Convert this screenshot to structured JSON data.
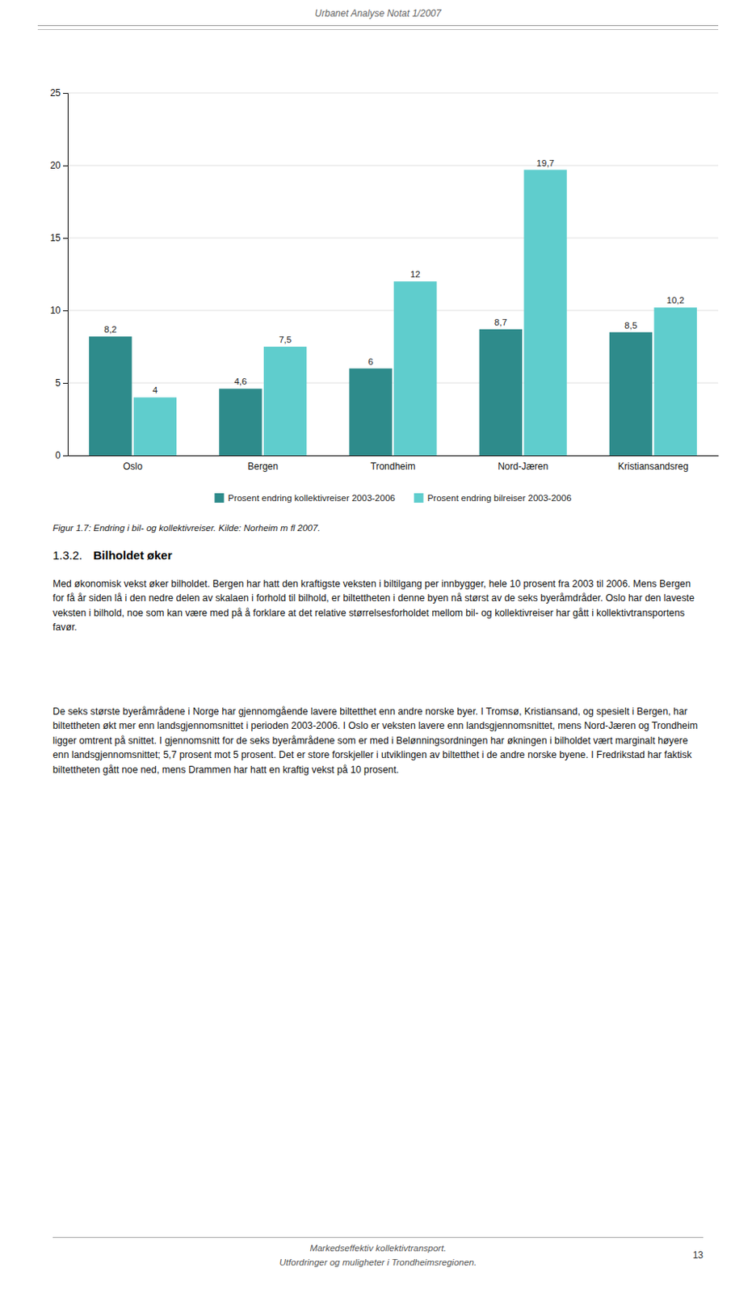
{
  "header": "Urbanet Analyse Notat 1/2007",
  "section_number": "1.3.2.",
  "section_title": "Bilholdet øker",
  "paragraphs": [
    "Med økonomisk vekst øker bilholdet. Bergen har hatt den kraftigste veksten i biltilgang per innbygger, hele 10 prosent fra 2003 til 2006. Mens Bergen for få år siden lå i den nedre delen av skalaen i forhold til bilhold, er biltettheten i denne byen nå størst av de seks byeråmdråder. Oslo har den laveste veksten i bilhold, noe som kan være med på å forklare at det relative størrelsesforholdet mellom bil- og kollektivreiser har gått i kollektivtransportens favør.",
    "De seks største byeråmrådene i Norge har gjennomgående lavere biltetthet enn andre norske byer. I Tromsø, Kristiansand, og spesielt i Bergen, har biltettheten økt mer enn landsgjennomsnittet i perioden 2003-2006. I Oslo er veksten lavere enn landsgjennomsnittet, mens Nord-Jæren og Trondheim ligger omtrent på snittet. I gjennomsnitt for de seks byeråmrådene som er med i Belønningsordningen har økningen i bilholdet vært marginalt høyere enn landsgjennomsnittet; 5,7 prosent mot 5 prosent. Det er store forskjeller i utviklingen av biltetthet i de andre norske byene. I Fredrikstad har faktisk biltettheten gått noe ned, mens Drammen har hatt en kraftig vekst på 10 prosent."
  ],
  "footer": [
    "Markedseffektiv kollektivtransport.",
    "Utfordringer og muligheter i Trondheimsregionen."
  ],
  "page_number": "13",
  "chart_data": {
    "type": "bar",
    "title": "Figur 1.7: Endring i bil- og kollektivreiser. Kilde: Norheim m fl 2007.",
    "categories": [
      "Oslo",
      "Bergen",
      "Trondheim",
      "Nord-Jæren",
      "Kristiansandsreg"
    ],
    "series": [
      {
        "name": "Prosent endring kollektivreiser 2003-2006",
        "color": "#2E8B8B",
        "values": [
          8.2,
          4.6,
          6.0,
          8.7,
          8.5
        ],
        "value_labels": [
          "8,2",
          "4,6",
          "6",
          "8,7",
          "8,5"
        ]
      },
      {
        "name": "Prosent endring bilreiser 2003-2006",
        "color": "#5FCDCD",
        "values": [
          4.0,
          7.5,
          12.0,
          19.7,
          10.2
        ],
        "value_labels": [
          "4",
          "7,5",
          "12",
          "19,7",
          "10,2"
        ]
      }
    ],
    "ylim": [
      0,
      25
    ],
    "yticks": [
      0,
      5,
      10,
      15,
      20,
      25
    ],
    "grid": true,
    "legend": "bottom",
    "data_labels": true
  }
}
